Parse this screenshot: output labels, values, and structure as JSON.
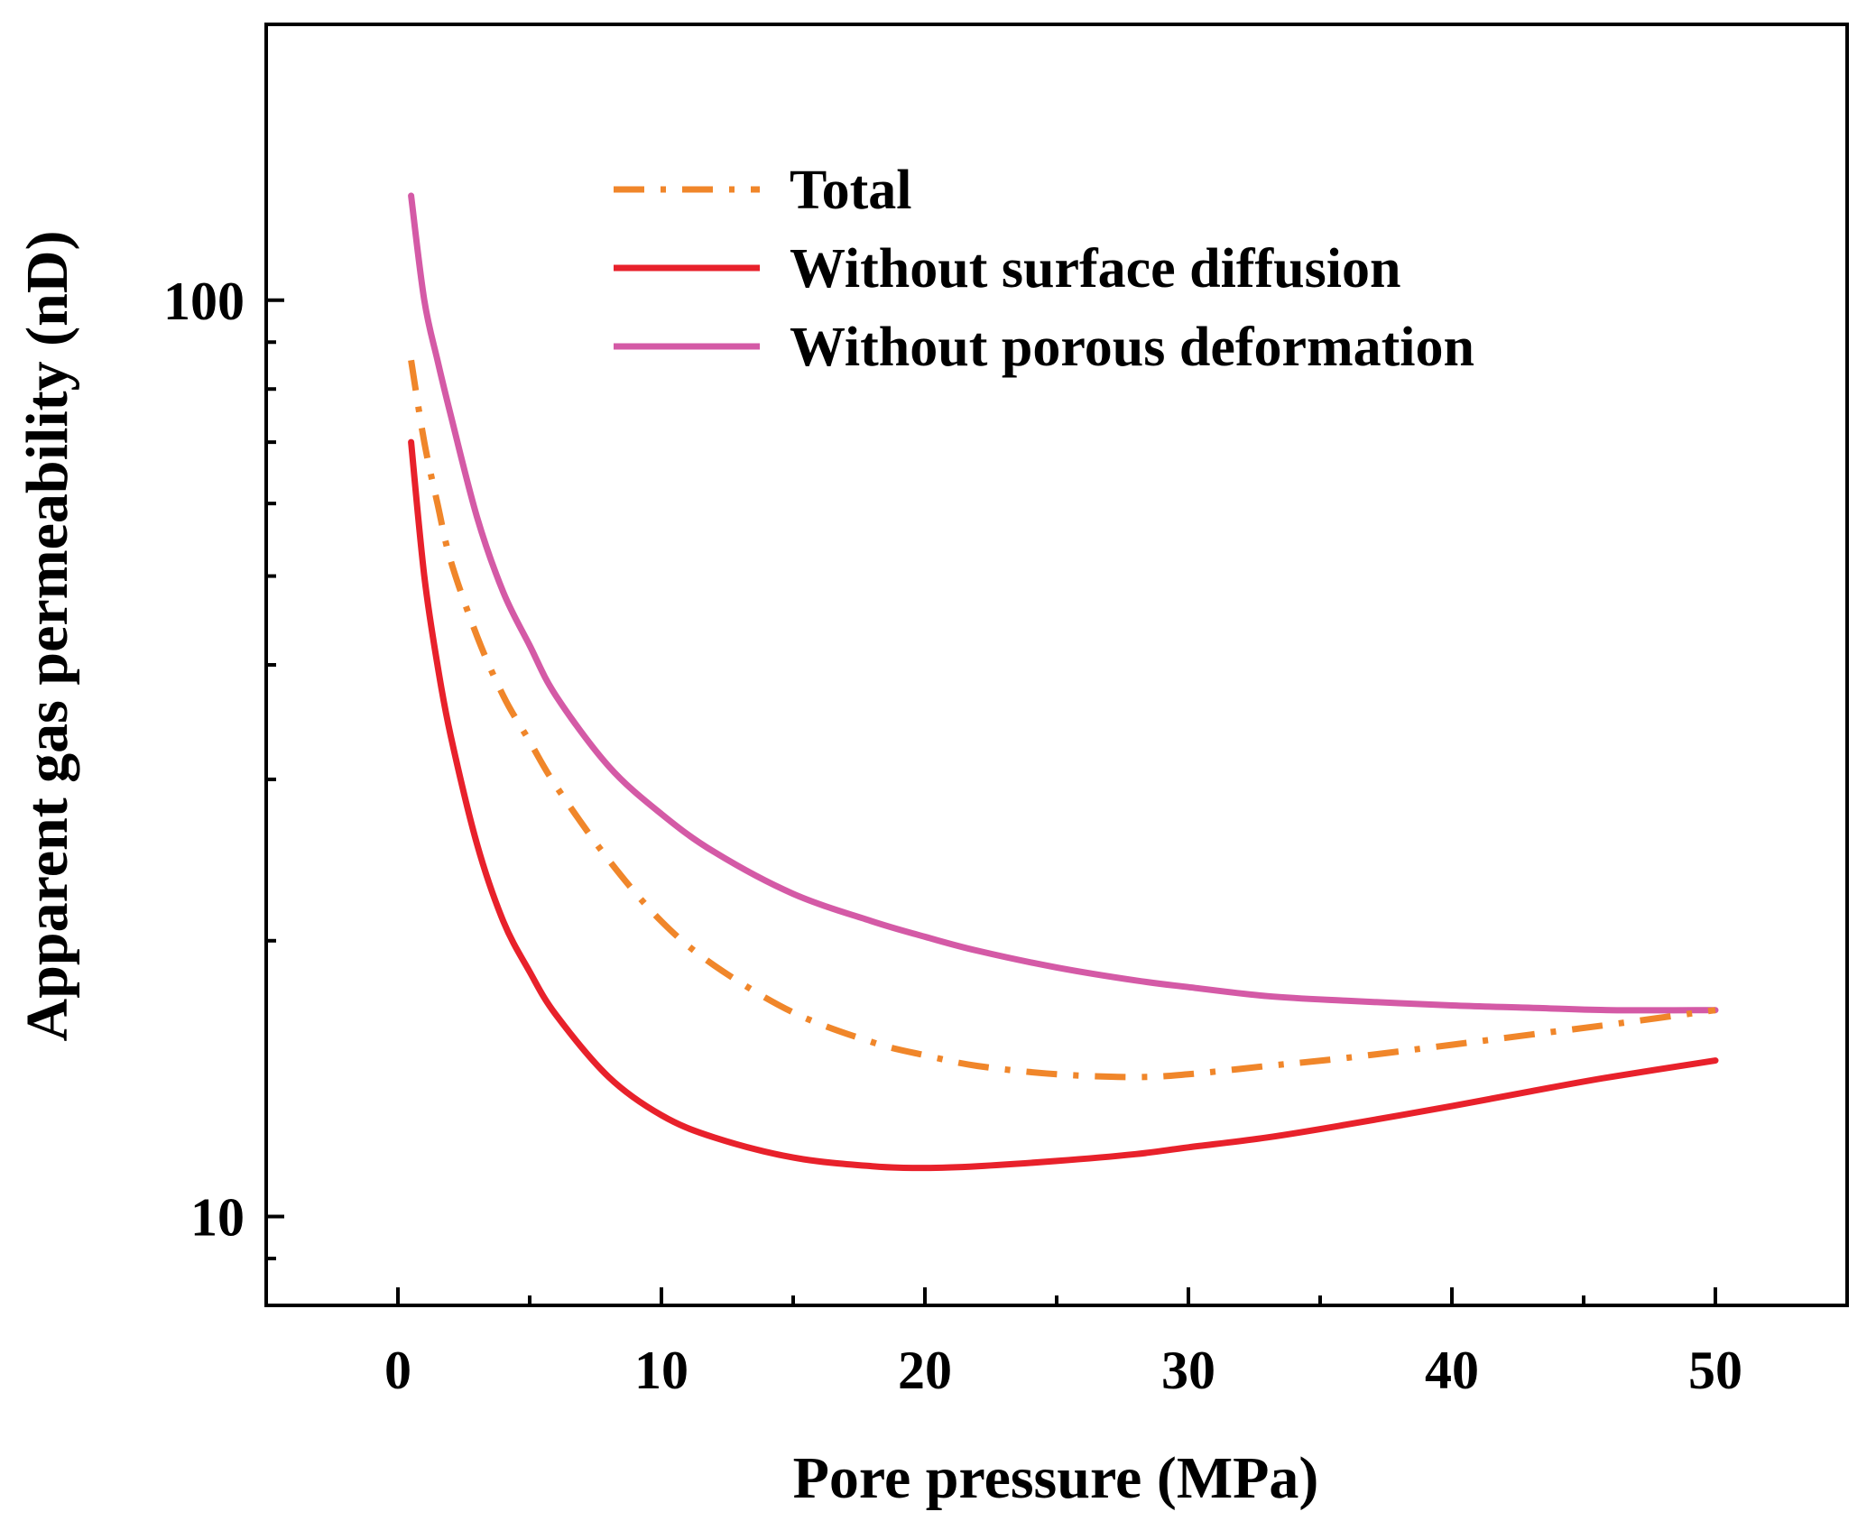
{
  "chart_data": {
    "type": "line",
    "title": "",
    "xlabel": "Pore pressure (MPa)",
    "ylabel": "Apparent gas permeability (nD)",
    "xlim": [
      -5,
      55
    ],
    "ylim": [
      8,
      200
    ],
    "yscale": "log",
    "grid": false,
    "x_ticks": [
      0,
      10,
      20,
      30,
      40,
      50
    ],
    "x_tick_labels": [
      "0",
      "10",
      "20",
      "30",
      "40",
      "50"
    ],
    "y_ticks": [
      10,
      100
    ],
    "y_tick_labels": [
      "10",
      "100"
    ],
    "legend_position": "top-center",
    "series": [
      {
        "name": "Total",
        "color": "#f0862a",
        "style": "dash-dot",
        "x": [
          0.5,
          1,
          1.5,
          2,
          3,
          4,
          5,
          6,
          8,
          10,
          12,
          15,
          18,
          20,
          22,
          25,
          28,
          30,
          33,
          36,
          40,
          43,
          46,
          50
        ],
        "y": [
          86,
          70,
          60,
          52,
          43,
          37,
          33,
          29.5,
          24.5,
          21,
          18.8,
          16.7,
          15.5,
          15,
          14.6,
          14.3,
          14.2,
          14.3,
          14.6,
          14.9,
          15.4,
          15.8,
          16.2,
          16.8
        ]
      },
      {
        "name": "Without surface diffusion",
        "color": "#e8212b",
        "style": "solid",
        "x": [
          0.5,
          1,
          1.5,
          2,
          3,
          4,
          5,
          6,
          8,
          10,
          12,
          15,
          18,
          20,
          22,
          25,
          28,
          30,
          33,
          36,
          40,
          43,
          46,
          50
        ],
        "y": [
          70,
          50,
          40,
          33.5,
          25.5,
          21,
          18.5,
          16.6,
          14.2,
          12.9,
          12.2,
          11.6,
          11.35,
          11.3,
          11.35,
          11.5,
          11.7,
          11.9,
          12.2,
          12.6,
          13.2,
          13.7,
          14.2,
          14.8
        ]
      },
      {
        "name": "Without porous deformation",
        "color": "#d45aa6",
        "style": "solid",
        "x": [
          0.5,
          1,
          1.5,
          2,
          3,
          4,
          5,
          6,
          8,
          10,
          12,
          15,
          18,
          20,
          22,
          25,
          28,
          30,
          33,
          36,
          40,
          43,
          46,
          50
        ],
        "y": [
          130,
          100,
          86,
          75,
          58,
          48,
          42,
          37,
          31,
          27.5,
          25,
          22.5,
          21,
          20.2,
          19.5,
          18.7,
          18.1,
          17.8,
          17.4,
          17.2,
          17,
          16.9,
          16.8,
          16.8
        ]
      }
    ]
  }
}
